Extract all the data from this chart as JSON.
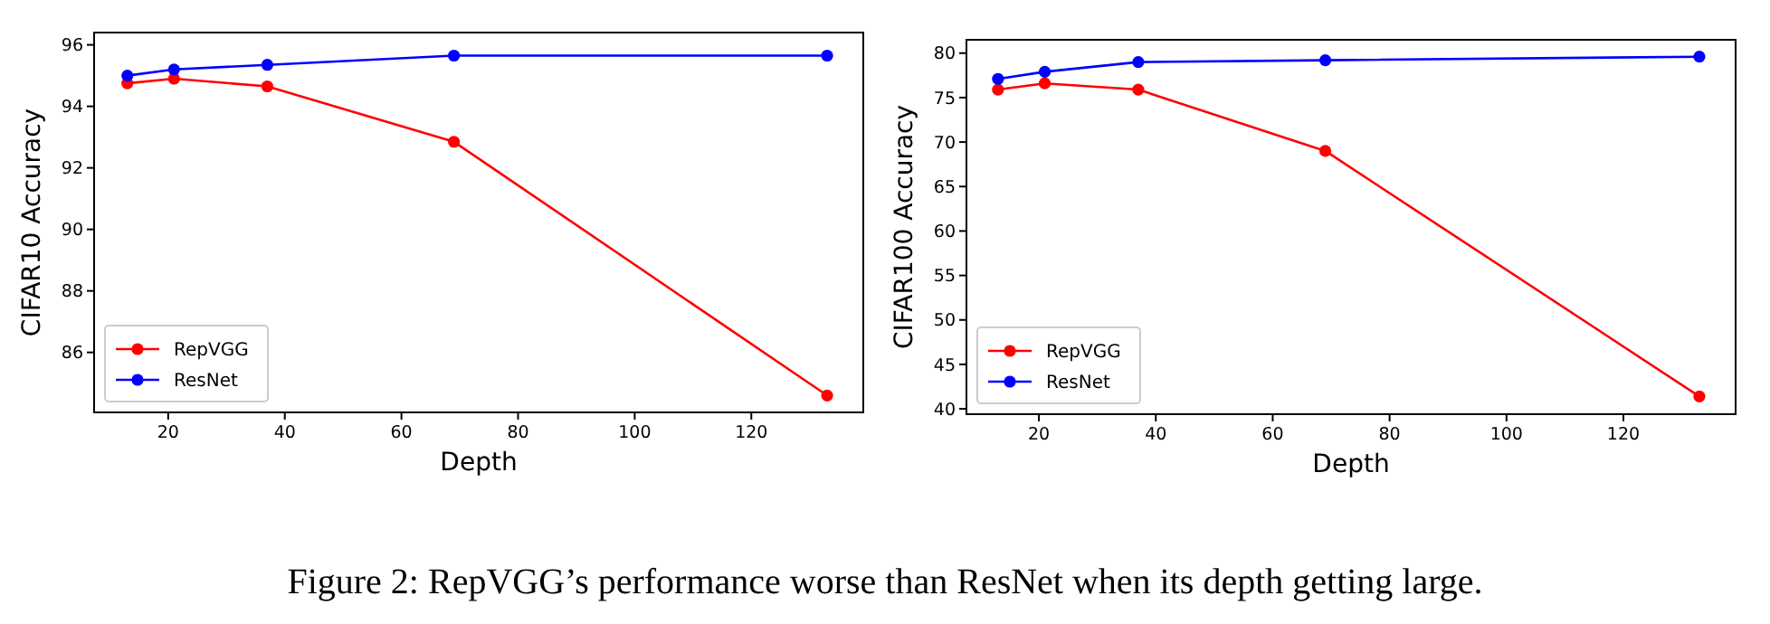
{
  "chart_data": [
    {
      "type": "line",
      "xlabel": "Depth",
      "ylabel": "CIFAR10 Accuracy",
      "x": [
        13,
        21,
        37,
        69,
        133
      ],
      "xlim": [
        7.3,
        139.2
      ],
      "xticks": [
        20,
        40,
        60,
        80,
        100,
        120
      ],
      "ylim": [
        84.05,
        96.4
      ],
      "yticks": [
        86,
        88,
        90,
        92,
        94,
        96
      ],
      "marker": "circle",
      "legend": "bottom left",
      "series": [
        {
          "name": "RepVGG",
          "color": "#ff0000",
          "values": [
            94.75,
            94.9,
            94.65,
            92.85,
            84.6
          ]
        },
        {
          "name": "ResNet",
          "color": "#0000ff",
          "values": [
            95.0,
            95.2,
            95.35,
            95.65,
            95.65
          ]
        }
      ],
      "annotations": [
        "Figure 2: RepVGG’s performance worse than ResNet when its depth getting large."
      ]
    },
    {
      "type": "line",
      "xlabel": "Depth",
      "ylabel": "CIFAR100 Accuracy",
      "x": [
        13,
        21,
        37,
        69,
        133
      ],
      "xlim": [
        7.6,
        139.2
      ],
      "xticks": [
        20,
        40,
        60,
        80,
        100,
        120
      ],
      "ylim": [
        39.4,
        81.5
      ],
      "yticks": [
        40,
        45,
        50,
        55,
        60,
        65,
        70,
        75,
        80
      ],
      "marker": "circle",
      "legend": "bottom left",
      "series": [
        {
          "name": "RepVGG",
          "color": "#ff0000",
          "values": [
            75.9,
            76.6,
            75.9,
            69.0,
            41.4
          ]
        },
        {
          "name": "ResNet",
          "color": "#0000ff",
          "values": [
            77.1,
            77.9,
            79.0,
            79.2,
            79.6
          ]
        }
      ]
    }
  ]
}
